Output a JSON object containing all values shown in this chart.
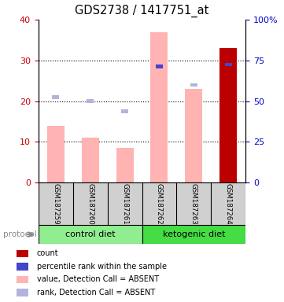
{
  "title": "GDS2738 / 1417751_at",
  "samples": [
    "GSM187259",
    "GSM187260",
    "GSM187261",
    "GSM187262",
    "GSM187263",
    "GSM187264"
  ],
  "groups": [
    {
      "label": "control diet",
      "samples": [
        0,
        1,
        2
      ],
      "color": "#90ee90"
    },
    {
      "label": "ketogenic diet",
      "samples": [
        3,
        4,
        5
      ],
      "color": "#44dd44"
    }
  ],
  "pink_bar_values": [
    14.0,
    11.0,
    8.5,
    37.0,
    23.0,
    0.0
  ],
  "red_bar_values": [
    0.0,
    0.0,
    0.0,
    0.0,
    0.0,
    33.0
  ],
  "rank_squares_left": [
    21.0,
    20.0,
    17.5,
    28.5,
    24.0,
    29.0
  ],
  "blue_square_present": [
    false,
    false,
    false,
    true,
    false,
    true
  ],
  "ylim_left": [
    0,
    40
  ],
  "ylim_right": [
    0,
    100
  ],
  "left_ticks": [
    0,
    10,
    20,
    30,
    40
  ],
  "right_ticks": [
    0,
    25,
    50,
    75,
    100
  ],
  "left_tick_labels": [
    "0",
    "10",
    "20",
    "30",
    "40"
  ],
  "right_tick_labels": [
    "0",
    "25",
    "50",
    "75",
    "100%"
  ],
  "left_color": "#cc0000",
  "right_color": "#0000cc",
  "pink_color": "#ffb3b3",
  "red_color": "#bb0000",
  "blue_color": "#4444cc",
  "rank_absent_color": "#b3b3dd",
  "protocol_label": "protocol",
  "sample_box_color": "#d0d0d0",
  "legend": [
    {
      "color": "#bb0000",
      "label": "count"
    },
    {
      "color": "#4444cc",
      "label": "percentile rank within the sample"
    },
    {
      "color": "#ffb3b3",
      "label": "value, Detection Call = ABSENT"
    },
    {
      "color": "#b3b3dd",
      "label": "rank, Detection Call = ABSENT"
    }
  ],
  "fig_width": 3.61,
  "fig_height": 3.84,
  "fig_dpi": 100
}
